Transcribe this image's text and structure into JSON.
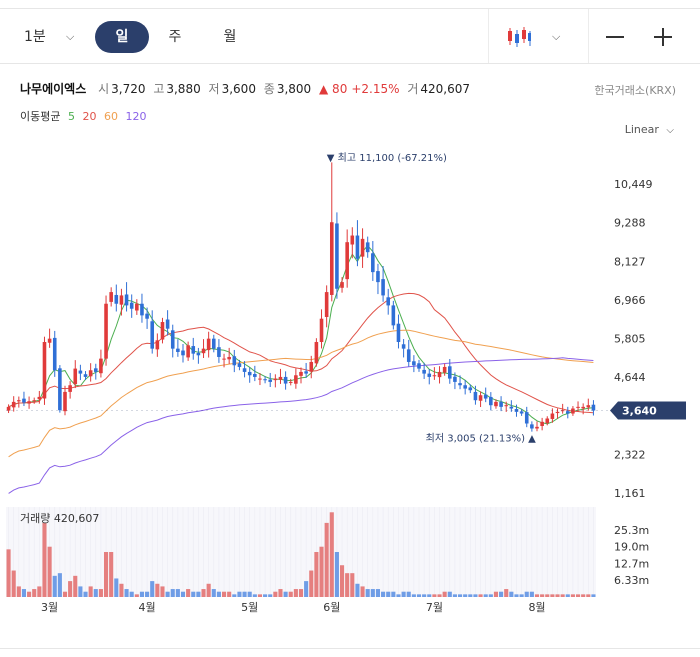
{
  "toolbar": {
    "interval": "1분",
    "tabs": [
      "일",
      "주",
      "월"
    ],
    "active_tab": "일",
    "chart_type_icon": "candlestick-icon",
    "zoom_out_icon": "minus-icon",
    "zoom_in_icon": "plus-icon"
  },
  "stock": {
    "name": "나무에이엑스",
    "open_label": "시",
    "open": "3,720",
    "high_label": "고",
    "high": "3,880",
    "low_label": "저",
    "low": "3,600",
    "close_label": "종",
    "close": "3,800",
    "change": "▲ 80",
    "change_pct": "+2.15%",
    "volume_label": "거",
    "volume": "420,607",
    "exchange": "한국거래소(KRX)",
    "up_color": "#e03a3a",
    "down_color": "#2f6fd6"
  },
  "ma_legend": {
    "title": "이동평균",
    "periods": [
      {
        "label": "5",
        "color": "#4caf50"
      },
      {
        "label": "20",
        "color": "#e0534a"
      },
      {
        "label": "60",
        "color": "#f0a050"
      },
      {
        "label": "120",
        "color": "#8a62e8"
      }
    ]
  },
  "scale_mode": "Linear",
  "chart_data": {
    "type": "candlestick",
    "y_ticks": [
      {
        "label": "10,449",
        "value": 10449
      },
      {
        "label": "9,288",
        "value": 9288
      },
      {
        "label": "8,127",
        "value": 8127
      },
      {
        "label": "6,966",
        "value": 6966
      },
      {
        "label": "5,805",
        "value": 5805
      },
      {
        "label": "4,644",
        "value": 4644
      },
      {
        "label": "2,322",
        "value": 2322
      },
      {
        "label": "1,161",
        "value": 1161
      }
    ],
    "ylim": [
      1161,
      11600
    ],
    "current_price_label": "3,640",
    "current_price": 3640,
    "max_annotation": "▼ 최고 11,100 (-67.21%)",
    "max_value": 11100,
    "max_index": 63,
    "min_annotation": "최저 3,005 (21.13%) ▲",
    "min_value": 3005,
    "min_index": 102,
    "x_ticks": [
      {
        "label": "3월",
        "index": 8
      },
      {
        "label": "4월",
        "index": 27
      },
      {
        "label": "5월",
        "index": 47
      },
      {
        "label": "6월",
        "index": 63
      },
      {
        "label": "7월",
        "index": 83
      },
      {
        "label": "8월",
        "index": 103
      }
    ],
    "closes": [
      3750,
      3900,
      3950,
      3880,
      3920,
      3950,
      4050,
      5700,
      5800,
      4850,
      3650,
      4200,
      4400,
      4900,
      4750,
      4650,
      4850,
      4800,
      5200,
      6850,
      7200,
      6850,
      7100,
      6800,
      6700,
      6850,
      6500,
      6400,
      5500,
      5750,
      6300,
      6100,
      5500,
      5400,
      5300,
      5600,
      5350,
      5300,
      5500,
      5800,
      5500,
      5250,
      5200,
      5250,
      5000,
      4950,
      4800,
      4700,
      4650,
      4600,
      4550,
      4500,
      4600,
      4650,
      4450,
      4500,
      4700,
      4800,
      4750,
      5100,
      5700,
      6400,
      7200,
      9300,
      7300,
      7500,
      8700,
      8900,
      8200,
      8800,
      8400,
      7800,
      7500,
      7100,
      6800,
      6200,
      5700,
      5500,
      5100,
      5000,
      4900,
      4750,
      4650,
      4700,
      4800,
      4950,
      4600,
      4500,
      4400,
      4300,
      4250,
      3950,
      4100,
      4000,
      3800,
      3900,
      3750,
      3800,
      3700,
      3600,
      3550,
      3250,
      3100,
      3150,
      3300,
      3400,
      3550,
      3600,
      3650,
      3550,
      3700,
      3750,
      3750,
      3800,
      3640
    ],
    "volume_ticks": [
      {
        "label": "25.3m",
        "value": 25.3
      },
      {
        "label": "19.0m",
        "value": 19.0
      },
      {
        "label": "12.7m",
        "value": 12.7
      },
      {
        "label": "6.33m",
        "value": 6.33
      }
    ],
    "volume_title": "거래량",
    "volume_value": "420,607",
    "volumes": [
      18,
      10,
      4,
      3,
      2,
      3,
      4,
      28,
      19,
      8,
      9,
      2,
      6,
      8,
      4,
      2,
      4,
      3,
      3,
      17,
      17,
      7,
      5,
      3,
      2,
      1,
      2,
      2,
      6,
      5,
      4,
      2,
      3,
      3,
      2,
      3,
      2,
      2,
      3,
      5,
      3,
      2,
      2,
      2,
      1,
      2,
      2,
      2,
      1,
      1,
      1,
      1,
      2,
      3,
      2,
      2,
      3,
      3,
      6,
      10,
      17,
      19,
      28,
      32,
      17,
      12,
      9,
      9,
      5,
      4,
      3,
      3,
      3,
      2,
      2,
      2,
      1,
      2,
      2,
      1,
      1,
      1,
      1,
      1,
      1,
      2,
      2,
      1,
      1,
      1,
      1,
      1,
      1,
      1,
      1,
      2,
      2,
      3,
      2,
      1,
      1,
      2,
      2,
      1,
      1,
      1,
      1,
      1,
      1,
      1,
      1,
      1,
      1,
      1,
      1
    ]
  }
}
